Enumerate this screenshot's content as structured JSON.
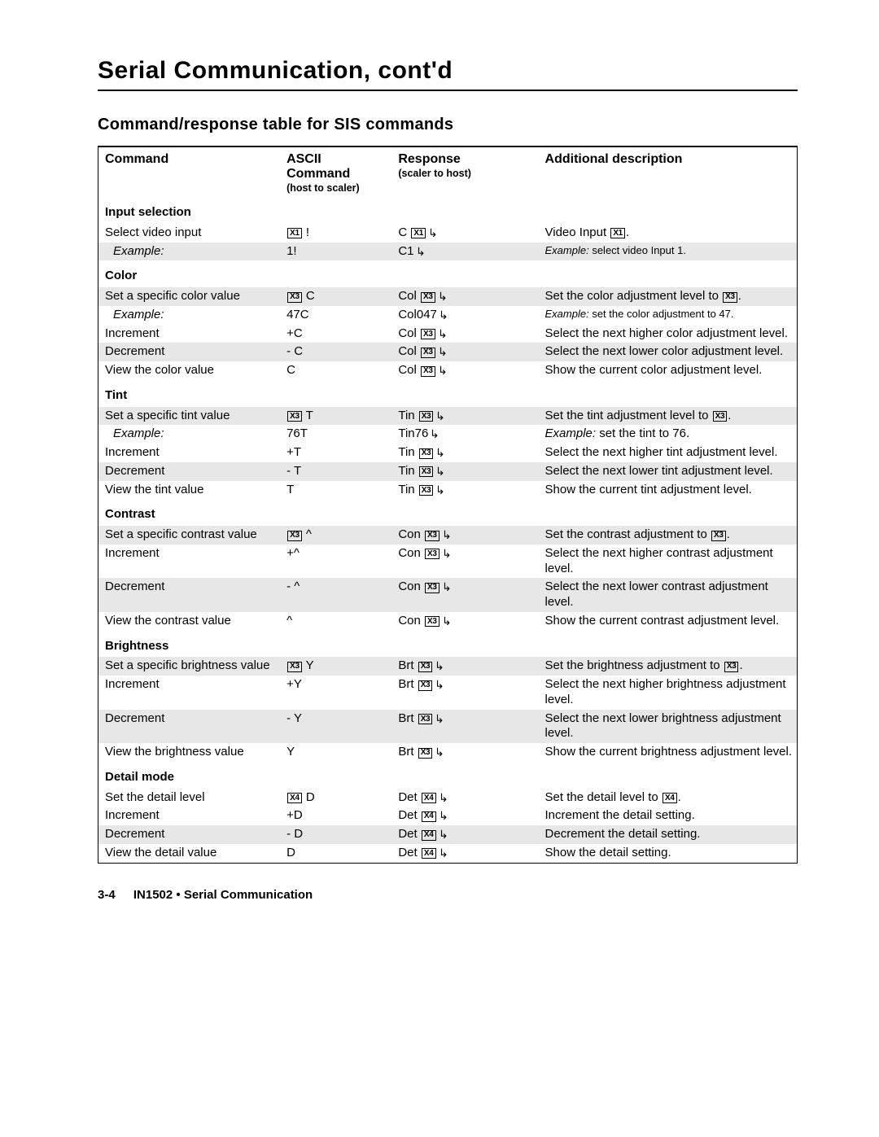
{
  "page_title": "Serial Communication, cont'd",
  "section_title": "Command/response table for SIS commands",
  "header": {
    "c1": "Command",
    "c2": "ASCII Command",
    "c2_sub": "(host to scaler)",
    "c3": "Response",
    "c3_sub": "(scaler to host)",
    "c4": "Additional description"
  },
  "colors": {
    "shaded_row": "#e7e7e7",
    "text": "#000000",
    "background": "#ffffff"
  },
  "table_layout": {
    "col_widths_pct": [
      26,
      16,
      21,
      37
    ]
  },
  "sections": [
    {
      "title": "Input selection",
      "rows": [
        {
          "shaded": false,
          "cmd": "Select video input",
          "ascii": [
            {
              "box": "X1"
            },
            " !"
          ],
          "resp": [
            "C ",
            {
              "box": "X1"
            },
            {
              "ret": true
            }
          ],
          "desc": [
            "Video Input ",
            {
              "box": "X1"
            },
            "."
          ]
        },
        {
          "shaded": true,
          "cmd_ital": "Example:",
          "ascii": [
            "1!"
          ],
          "resp": [
            "C1",
            {
              "ret": true
            }
          ],
          "desc_ital_prefix": "Example:",
          "desc_rest": " select video Input 1.",
          "desc_small": true
        }
      ]
    },
    {
      "title": "Color",
      "rows": [
        {
          "shaded": true,
          "cmd": "Set a specific color value",
          "ascii": [
            {
              "box": "X3"
            },
            " C"
          ],
          "resp": [
            "Col ",
            {
              "box": "X3"
            },
            {
              "ret": true
            }
          ],
          "desc": [
            "Set the color adjustment level to ",
            {
              "box": "X3"
            },
            "."
          ]
        },
        {
          "shaded": false,
          "cmd_ital": "Example:",
          "ascii": [
            "47C"
          ],
          "resp": [
            "Col047",
            {
              "ret": true
            }
          ],
          "desc_ital_prefix": "Example:",
          "desc_rest": " set the color adjustment to 47.",
          "desc_small": true
        },
        {
          "shaded": false,
          "cmd": "Increment",
          "ascii": [
            "+C"
          ],
          "resp": [
            "Col ",
            {
              "box": "X3"
            },
            {
              "ret": true
            }
          ],
          "desc": [
            "Select the next higher color adjustment level."
          ]
        },
        {
          "shaded": true,
          "cmd": "Decrement",
          "ascii": [
            "- C"
          ],
          "resp": [
            "Col ",
            {
              "box": "X3"
            },
            {
              "ret": true
            }
          ],
          "desc": [
            "Select the next lower color adjustment level."
          ]
        },
        {
          "shaded": false,
          "cmd": "View the color value",
          "ascii": [
            "C"
          ],
          "resp": [
            "Col ",
            {
              "box": "X3"
            },
            {
              "ret": true
            }
          ],
          "desc": [
            "Show the current color adjustment level."
          ]
        }
      ]
    },
    {
      "title": "Tint",
      "rows": [
        {
          "shaded": true,
          "cmd": "Set a specific tint value",
          "ascii": [
            {
              "box": "X3"
            },
            " T"
          ],
          "resp": [
            "Tin ",
            {
              "box": "X3"
            },
            {
              "ret": true
            }
          ],
          "desc": [
            "Set the tint adjustment level to ",
            {
              "box": "X3"
            },
            "."
          ]
        },
        {
          "shaded": false,
          "cmd_ital": "Example:",
          "ascii": [
            "76T"
          ],
          "resp": [
            "Tin76",
            {
              "ret": true
            }
          ],
          "desc_ital_prefix": "Example:",
          "desc_rest": " set the tint to 76."
        },
        {
          "shaded": false,
          "cmd": "Increment",
          "ascii": [
            "+T"
          ],
          "resp": [
            "Tin ",
            {
              "box": "X3"
            },
            {
              "ret": true
            }
          ],
          "desc": [
            "Select the next higher tint adjustment level."
          ]
        },
        {
          "shaded": true,
          "cmd": "Decrement",
          "ascii": [
            "- T"
          ],
          "resp": [
            "Tin ",
            {
              "box": "X3"
            },
            {
              "ret": true
            }
          ],
          "desc": [
            "Select the next lower tint adjustment level."
          ]
        },
        {
          "shaded": false,
          "cmd": "View the tint value",
          "ascii": [
            "T"
          ],
          "resp": [
            "Tin ",
            {
              "box": "X3"
            },
            {
              "ret": true
            }
          ],
          "desc": [
            "Show the current tint adjustment level."
          ]
        }
      ]
    },
    {
      "title": "Contrast",
      "rows": [
        {
          "shaded": true,
          "cmd": "Set a specific contrast value",
          "ascii": [
            {
              "box": "X3"
            },
            " ^"
          ],
          "resp": [
            "Con ",
            {
              "box": "X3"
            },
            {
              "ret": true
            }
          ],
          "desc": [
            "Set the contrast adjustment to ",
            {
              "box": "X3"
            },
            "."
          ]
        },
        {
          "shaded": false,
          "cmd": "Increment",
          "ascii": [
            "+^"
          ],
          "resp": [
            "Con ",
            {
              "box": "X3"
            },
            {
              "ret": true
            }
          ],
          "desc": [
            "Select the next higher contrast adjustment level."
          ]
        },
        {
          "shaded": true,
          "cmd": "Decrement",
          "ascii": [
            "- ^"
          ],
          "resp": [
            "Con ",
            {
              "box": "X3"
            },
            {
              "ret": true
            }
          ],
          "desc": [
            "Select the next lower contrast adjustment level."
          ]
        },
        {
          "shaded": false,
          "cmd": "View the contrast value",
          "ascii": [
            "^"
          ],
          "resp": [
            "Con ",
            {
              "box": "X3"
            },
            {
              "ret": true
            }
          ],
          "desc": [
            "Show the current contrast adjustment level."
          ]
        }
      ]
    },
    {
      "title": "Brightness",
      "rows": [
        {
          "shaded": true,
          "cmd": "Set a specific brightness value",
          "ascii": [
            {
              "box": "X3"
            },
            " Y"
          ],
          "resp": [
            "Brt ",
            {
              "box": "X3"
            },
            {
              "ret": true
            }
          ],
          "desc": [
            "Set the brightness adjustment to ",
            {
              "box": "X3"
            },
            "."
          ]
        },
        {
          "shaded": false,
          "cmd": "Increment",
          "ascii": [
            "+Y"
          ],
          "resp": [
            "Brt ",
            {
              "box": "X3"
            },
            {
              "ret": true
            }
          ],
          "desc": [
            "Select the next higher brightness adjustment level."
          ]
        },
        {
          "shaded": true,
          "cmd": "Decrement",
          "ascii": [
            "- Y"
          ],
          "resp": [
            "Brt ",
            {
              "box": "X3"
            },
            {
              "ret": true
            }
          ],
          "desc": [
            "Select the next lower brightness adjustment level."
          ]
        },
        {
          "shaded": false,
          "cmd": "View the brightness value",
          "ascii": [
            "Y"
          ],
          "resp": [
            "Brt ",
            {
              "box": "X3"
            },
            {
              "ret": true
            }
          ],
          "desc": [
            "Show the current brightness adjustment level."
          ]
        }
      ]
    },
    {
      "title": "Detail mode",
      "rows": [
        {
          "shaded": false,
          "cmd": "Set the detail level",
          "ascii": [
            {
              "box": "X4"
            },
            " D"
          ],
          "resp": [
            "Det ",
            {
              "box": "X4"
            },
            {
              "ret": true
            }
          ],
          "desc": [
            "Set the detail level to ",
            {
              "box": "X4"
            },
            "."
          ]
        },
        {
          "shaded": false,
          "cmd": "Increment",
          "ascii": [
            "+D"
          ],
          "resp": [
            "Det ",
            {
              "box": "X4"
            },
            {
              "ret": true
            }
          ],
          "desc": [
            "Increment the detail setting."
          ]
        },
        {
          "shaded": true,
          "cmd": "Decrement",
          "ascii": [
            "- D"
          ],
          "resp": [
            "Det ",
            {
              "box": "X4"
            },
            {
              "ret": true
            }
          ],
          "desc": [
            "Decrement the detail setting."
          ]
        },
        {
          "shaded": false,
          "cmd": "View the detail value",
          "ascii": [
            "D"
          ],
          "resp": [
            "Det ",
            {
              "box": "X4"
            },
            {
              "ret": true
            }
          ],
          "desc": [
            "Show the detail setting."
          ]
        }
      ]
    }
  ],
  "footer": {
    "page": "3-4",
    "chapter": "IN1502 • Serial Communication"
  }
}
